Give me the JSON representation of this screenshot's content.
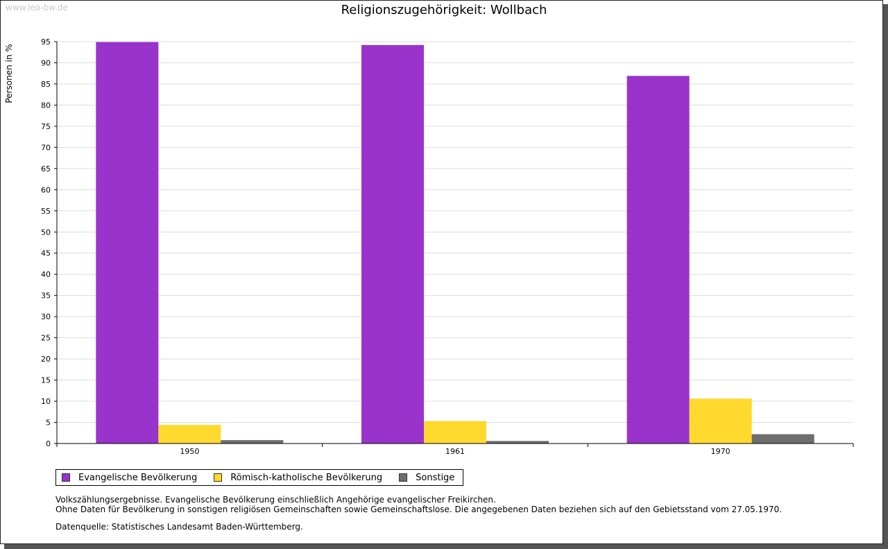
{
  "watermark": "www.leo-bw.de",
  "chart_data": {
    "type": "bar",
    "title": "Religionszugehörigkeit: Wollbach",
    "xlabel": "",
    "ylabel": "Personen in %",
    "ylim": [
      0,
      95
    ],
    "yticks": [
      0,
      5,
      10,
      15,
      20,
      25,
      30,
      35,
      40,
      45,
      50,
      55,
      60,
      65,
      70,
      75,
      80,
      85,
      90,
      95
    ],
    "categories": [
      "1950",
      "1961",
      "1970"
    ],
    "grid": true,
    "legend_position": "bottom-left",
    "series": [
      {
        "name": "Evangelische Bevölkerung",
        "color": "#9933cc",
        "values": [
          94.9,
          94.2,
          86.9
        ]
      },
      {
        "name": "Römisch-katholische Bevölkerung",
        "color": "#ffd92e",
        "values": [
          4.4,
          5.3,
          10.6
        ]
      },
      {
        "name": "Sonstige",
        "color": "#6e6e6e",
        "values": [
          0.8,
          0.6,
          2.2
        ]
      }
    ]
  },
  "notes": [
    "Volkszählungsergebnisse. Evangelische Bevölkerung einschließlich Angehörige evangelischer Freikirchen.",
    "Ohne Daten für Bevölkerung in sonstigen religiösen Gemeinschaften sowie Gemeinschaftslose. Die angegebenen Daten beziehen sich auf den Gebietsstand vom 27.05.1970."
  ],
  "source": "Datenquelle: Statistisches Landesamt Baden-Württemberg."
}
